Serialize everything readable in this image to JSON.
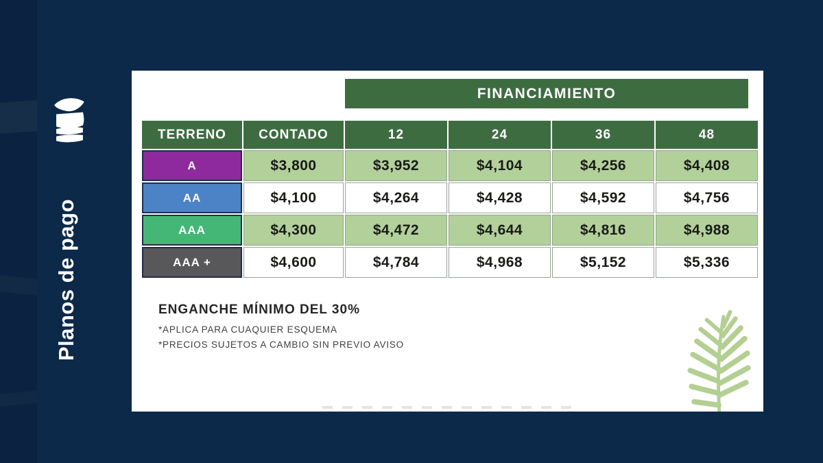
{
  "slide": {
    "vertical_title": "Planos de pago"
  },
  "colors": {
    "navy_bg": "#0d2949",
    "navy_band": "#0b2340",
    "header_green": "#3e6c41",
    "light_green_cell": "#b2d19a",
    "white_cell": "#ffffff",
    "fern_green": "#b3cf92",
    "label_border": "#202d49"
  },
  "icons": {
    "logo": "stacked-waves-logo",
    "fern": "fern-leaf"
  },
  "table": {
    "banner_label": "FINANCIAMIENTO",
    "columns": [
      "TERRENO",
      "CONTADO",
      "12",
      "24",
      "36",
      "48"
    ],
    "rows": [
      {
        "label": "A",
        "label_bg": "#8e2a9e",
        "cells_bg": "#b2d19a",
        "values": [
          "$3,800",
          "$3,952",
          "$4,104",
          "$4,256",
          "$4,408"
        ]
      },
      {
        "label": "AA",
        "label_bg": "#4c82c6",
        "cells_bg": "#ffffff",
        "values": [
          "$4,100",
          "$4,264",
          "$4,428",
          "$4,592",
          "$4,756"
        ]
      },
      {
        "label": "AAA",
        "label_bg": "#44b776",
        "cells_bg": "#b2d19a",
        "values": [
          "$4,300",
          "$4,472",
          "$4,644",
          "$4,816",
          "$4,988"
        ]
      },
      {
        "label": "AAA +",
        "label_bg": "#58585a",
        "cells_bg": "#ffffff",
        "values": [
          "$4,600",
          "$4,784",
          "$4,968",
          "$5,152",
          "$5,336"
        ]
      }
    ]
  },
  "notes": {
    "title": "ENGANCHE MÍNIMO DEL 30%",
    "lines": [
      "*APLICA PARA CUAQUIER ESQUEMA",
      "*PRECIOS SUJETOS A CAMBIO SIN PREVIO AVISO"
    ]
  }
}
